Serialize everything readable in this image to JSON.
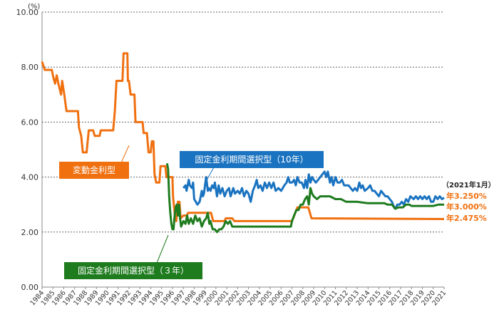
{
  "chart_data": {
    "type": "line",
    "y_unit": "(%)",
    "ylim": [
      0,
      10
    ],
    "yticks": [
      "0.00",
      "2.00",
      "4.00",
      "6.00",
      "8.00",
      "10.00"
    ],
    "xlim": [
      1984,
      2021
    ],
    "xticks": [
      "1984",
      "1985",
      "1986",
      "1987",
      "1988",
      "1989",
      "1990",
      "1991",
      "1992",
      "1993",
      "1994",
      "1995",
      "1996",
      "1997",
      "1998",
      "1999",
      "2000",
      "2001",
      "2002",
      "2003",
      "2004",
      "2005",
      "2006",
      "2007",
      "2008",
      "2009",
      "2010",
      "2011",
      "2012",
      "2013",
      "2014",
      "2015",
      "2016",
      "2017",
      "2018",
      "2019",
      "2020",
      "2021"
    ],
    "as_of": "（2021年1月）",
    "series": [
      {
        "name": "変動金利型",
        "color": "#F07010",
        "end_label": "年2.475%",
        "points": [
          [
            1984.0,
            8.2
          ],
          [
            1984.25,
            7.9
          ],
          [
            1984.9,
            7.9
          ],
          [
            1985.05,
            7.6
          ],
          [
            1985.2,
            7.4
          ],
          [
            1985.35,
            7.7
          ],
          [
            1985.5,
            7.4
          ],
          [
            1985.75,
            7.0
          ],
          [
            1985.85,
            7.5
          ],
          [
            1986.05,
            7.0
          ],
          [
            1986.25,
            6.4
          ],
          [
            1987.3,
            6.4
          ],
          [
            1987.4,
            5.8
          ],
          [
            1987.6,
            5.5
          ],
          [
            1987.75,
            4.9
          ],
          [
            1988.1,
            4.9
          ],
          [
            1988.3,
            5.7
          ],
          [
            1988.7,
            5.7
          ],
          [
            1988.85,
            5.5
          ],
          [
            1989.3,
            5.5
          ],
          [
            1989.4,
            5.7
          ],
          [
            1990.55,
            5.7
          ],
          [
            1990.7,
            6.4
          ],
          [
            1990.85,
            7.5
          ],
          [
            1991.4,
            7.5
          ],
          [
            1991.5,
            8.5
          ],
          [
            1991.85,
            8.5
          ],
          [
            1991.9,
            7.5
          ],
          [
            1992.0,
            7.5
          ],
          [
            1992.15,
            7.0
          ],
          [
            1992.5,
            7.0
          ],
          [
            1992.6,
            6.0
          ],
          [
            1993.25,
            6.0
          ],
          [
            1993.35,
            5.6
          ],
          [
            1993.65,
            5.6
          ],
          [
            1993.8,
            4.9
          ],
          [
            1994.0,
            4.9
          ],
          [
            1994.1,
            5.3
          ],
          [
            1994.25,
            5.3
          ],
          [
            1994.35,
            4.1
          ],
          [
            1994.5,
            3.8
          ],
          [
            1994.8,
            3.8
          ],
          [
            1994.9,
            4.4
          ],
          [
            1995.35,
            4.4
          ],
          [
            1995.45,
            4.0
          ],
          [
            1996.0,
            4.0
          ],
          [
            1996.05,
            3.3
          ],
          [
            1996.2,
            2.7
          ],
          [
            1996.35,
            2.4
          ],
          [
            1996.5,
            3.1
          ],
          [
            1996.65,
            3.1
          ],
          [
            1996.75,
            2.5
          ],
          [
            1997.0,
            2.6
          ],
          [
            1997.3,
            2.6
          ],
          [
            1997.45,
            2.7
          ],
          [
            1999.55,
            2.7
          ],
          [
            1999.75,
            2.4
          ],
          [
            2000.8,
            2.4
          ],
          [
            2000.9,
            2.5
          ],
          [
            2001.5,
            2.5
          ],
          [
            2001.7,
            2.4
          ],
          [
            2007.0,
            2.4
          ],
          [
            2007.3,
            2.7
          ],
          [
            2007.5,
            2.9
          ],
          [
            2008.5,
            2.9
          ],
          [
            2008.8,
            2.5
          ],
          [
            2021.0,
            2.475
          ]
        ]
      },
      {
        "name": "固定金利期間選択型（10年）",
        "color": "#1A73C0",
        "end_label": "年3.250%",
        "points": [
          [
            1997.0,
            3.6
          ],
          [
            1997.2,
            3.7
          ],
          [
            1997.3,
            3.5
          ],
          [
            1997.5,
            3.9
          ],
          [
            1997.6,
            3.7
          ],
          [
            1997.8,
            3.6
          ],
          [
            1997.9,
            3.8
          ],
          [
            1998.0,
            3.2
          ],
          [
            1998.3,
            3.0
          ],
          [
            1998.5,
            3.1
          ],
          [
            1998.7,
            3.5
          ],
          [
            1998.8,
            3.3
          ],
          [
            1998.9,
            3.4
          ],
          [
            1999.0,
            3.7
          ],
          [
            1999.1,
            4.0
          ],
          [
            1999.25,
            3.5
          ],
          [
            1999.35,
            3.6
          ],
          [
            1999.5,
            3.5
          ],
          [
            1999.65,
            3.7
          ],
          [
            1999.8,
            3.6
          ],
          [
            1999.9,
            3.8
          ],
          [
            2000.1,
            3.3
          ],
          [
            2000.25,
            3.7
          ],
          [
            2000.4,
            3.4
          ],
          [
            2000.6,
            3.6
          ],
          [
            2000.8,
            3.3
          ],
          [
            2001.0,
            3.5
          ],
          [
            2001.2,
            3.6
          ],
          [
            2001.35,
            3.3
          ],
          [
            2001.6,
            3.6
          ],
          [
            2001.75,
            3.4
          ],
          [
            2002.0,
            3.5
          ],
          [
            2002.2,
            3.4
          ],
          [
            2002.4,
            3.6
          ],
          [
            2002.6,
            3.3
          ],
          [
            2002.8,
            3.5
          ],
          [
            2003.0,
            3.4
          ],
          [
            2003.2,
            3.1
          ],
          [
            2003.4,
            3.5
          ],
          [
            2003.6,
            3.7
          ],
          [
            2003.75,
            3.9
          ],
          [
            2003.9,
            3.6
          ],
          [
            2004.1,
            3.7
          ],
          [
            2004.3,
            3.5
          ],
          [
            2004.5,
            3.8
          ],
          [
            2004.7,
            3.6
          ],
          [
            2004.9,
            3.8
          ],
          [
            2005.1,
            3.6
          ],
          [
            2005.3,
            3.8
          ],
          [
            2005.5,
            3.5
          ],
          [
            2005.75,
            3.6
          ],
          [
            2006.0,
            3.5
          ],
          [
            2006.3,
            3.7
          ],
          [
            2006.5,
            3.8
          ],
          [
            2006.65,
            4.0
          ],
          [
            2006.8,
            3.8
          ],
          [
            2007.0,
            3.8
          ],
          [
            2007.2,
            3.9
          ],
          [
            2007.35,
            3.7
          ],
          [
            2007.5,
            4.0
          ],
          [
            2007.7,
            3.8
          ],
          [
            2007.9,
            3.8
          ],
          [
            2008.1,
            3.6
          ],
          [
            2008.25,
            3.9
          ],
          [
            2008.4,
            3.6
          ],
          [
            2008.55,
            4.1
          ],
          [
            2008.7,
            3.8
          ],
          [
            2008.85,
            4.0
          ],
          [
            2009.0,
            3.9
          ],
          [
            2009.2,
            3.8
          ],
          [
            2009.4,
            3.9
          ],
          [
            2009.6,
            4.0
          ],
          [
            2009.8,
            4.1
          ],
          [
            2010.0,
            4.2
          ],
          [
            2010.15,
            4.0
          ],
          [
            2010.3,
            4.2
          ],
          [
            2010.5,
            3.8
          ],
          [
            2010.65,
            4.0
          ],
          [
            2010.8,
            3.7
          ],
          [
            2011.0,
            4.0
          ],
          [
            2011.2,
            3.8
          ],
          [
            2011.4,
            3.8
          ],
          [
            2011.6,
            3.9
          ],
          [
            2011.8,
            3.7
          ],
          [
            2012.0,
            3.7
          ],
          [
            2012.2,
            3.7
          ],
          [
            2012.4,
            3.6
          ],
          [
            2012.6,
            3.5
          ],
          [
            2012.8,
            3.6
          ],
          [
            2013.0,
            3.5
          ],
          [
            2013.2,
            3.8
          ],
          [
            2013.35,
            3.6
          ],
          [
            2013.5,
            3.7
          ],
          [
            2013.7,
            3.5
          ],
          [
            2014.0,
            3.6
          ],
          [
            2014.2,
            3.7
          ],
          [
            2014.4,
            3.5
          ],
          [
            2014.6,
            3.5
          ],
          [
            2014.8,
            3.4
          ],
          [
            2015.0,
            3.3
          ],
          [
            2015.2,
            3.5
          ],
          [
            2015.4,
            3.4
          ],
          [
            2015.6,
            3.3
          ],
          [
            2015.8,
            3.3
          ],
          [
            2016.0,
            3.2
          ],
          [
            2016.2,
            3.1
          ],
          [
            2016.4,
            2.9
          ],
          [
            2016.5,
            2.85
          ],
          [
            2016.7,
            3.0
          ],
          [
            2016.9,
            3.0
          ],
          [
            2017.1,
            3.1
          ],
          [
            2017.3,
            3.0
          ],
          [
            2017.5,
            3.2
          ],
          [
            2017.7,
            3.1
          ],
          [
            2017.9,
            3.3
          ],
          [
            2018.2,
            3.2
          ],
          [
            2018.4,
            3.3
          ],
          [
            2018.6,
            3.2
          ],
          [
            2018.8,
            3.3
          ],
          [
            2019.0,
            3.2
          ],
          [
            2019.2,
            3.3
          ],
          [
            2019.4,
            3.2
          ],
          [
            2019.6,
            3.3
          ],
          [
            2019.8,
            3.1
          ],
          [
            2020.0,
            3.1
          ],
          [
            2020.2,
            3.3
          ],
          [
            2020.4,
            3.2
          ],
          [
            2020.6,
            3.3
          ],
          [
            2020.8,
            3.2
          ],
          [
            2021.0,
            3.25
          ]
        ]
      },
      {
        "name": "固定金利期間選択型（３年）",
        "color": "#1E7B1E",
        "end_label": "年3.000%",
        "points": [
          [
            1995.5,
            4.5
          ],
          [
            1995.6,
            4.3
          ],
          [
            1995.7,
            3.3
          ],
          [
            1995.8,
            2.7
          ],
          [
            1995.9,
            2.3
          ],
          [
            1996.0,
            2.1
          ],
          [
            1996.1,
            2.1
          ],
          [
            1996.2,
            2.6
          ],
          [
            1996.3,
            2.9
          ],
          [
            1996.4,
            3.0
          ],
          [
            1996.5,
            2.6
          ],
          [
            1996.6,
            3.0
          ],
          [
            1996.7,
            2.5
          ],
          [
            1996.8,
            2.2
          ],
          [
            1997.0,
            2.4
          ],
          [
            1997.2,
            2.3
          ],
          [
            1997.35,
            2.6
          ],
          [
            1997.5,
            2.3
          ],
          [
            1997.7,
            2.5
          ],
          [
            1997.9,
            2.3
          ],
          [
            1998.1,
            2.6
          ],
          [
            1998.3,
            2.4
          ],
          [
            1998.5,
            2.5
          ],
          [
            1998.7,
            2.2
          ],
          [
            1998.9,
            2.4
          ],
          [
            1999.1,
            2.5
          ],
          [
            1999.25,
            2.7
          ],
          [
            1999.4,
            2.3
          ],
          [
            1999.5,
            2.4
          ],
          [
            1999.7,
            2.1
          ],
          [
            1999.9,
            2.1
          ],
          [
            2000.1,
            2.0
          ],
          [
            2000.3,
            2.1
          ],
          [
            2000.5,
            2.1
          ],
          [
            2000.7,
            2.2
          ],
          [
            2000.9,
            2.4
          ],
          [
            2001.1,
            2.3
          ],
          [
            2001.3,
            2.4
          ],
          [
            2001.5,
            2.2
          ],
          [
            2001.7,
            2.2
          ],
          [
            2006.9,
            2.2
          ],
          [
            2007.0,
            2.4
          ],
          [
            2007.2,
            2.6
          ],
          [
            2007.4,
            2.8
          ],
          [
            2007.6,
            2.8
          ],
          [
            2007.8,
            3.0
          ],
          [
            2008.0,
            3.0
          ],
          [
            2008.2,
            3.2
          ],
          [
            2008.4,
            3.3
          ],
          [
            2008.55,
            3.0
          ],
          [
            2008.7,
            3.6
          ],
          [
            2008.85,
            3.4
          ],
          [
            2009.0,
            3.3
          ],
          [
            2009.3,
            3.2
          ],
          [
            2009.6,
            3.3
          ],
          [
            2010.0,
            3.3
          ],
          [
            2010.5,
            3.3
          ],
          [
            2011.0,
            3.2
          ],
          [
            2011.5,
            3.2
          ],
          [
            2012.0,
            3.1
          ],
          [
            2013.0,
            3.1
          ],
          [
            2014.0,
            3.05
          ],
          [
            2015.5,
            3.05
          ],
          [
            2015.8,
            3.0
          ],
          [
            2016.0,
            3.0
          ],
          [
            2016.2,
            3.0
          ],
          [
            2016.4,
            2.9
          ],
          [
            2016.5,
            2.85
          ],
          [
            2016.8,
            2.9
          ],
          [
            2017.2,
            2.9
          ],
          [
            2017.5,
            3.0
          ],
          [
            2017.8,
            3.0
          ],
          [
            2018.0,
            2.95
          ],
          [
            2018.5,
            2.95
          ],
          [
            2019.0,
            2.95
          ],
          [
            2020.0,
            2.95
          ],
          [
            2020.5,
            3.0
          ],
          [
            2021.0,
            3.0
          ]
        ]
      }
    ]
  }
}
